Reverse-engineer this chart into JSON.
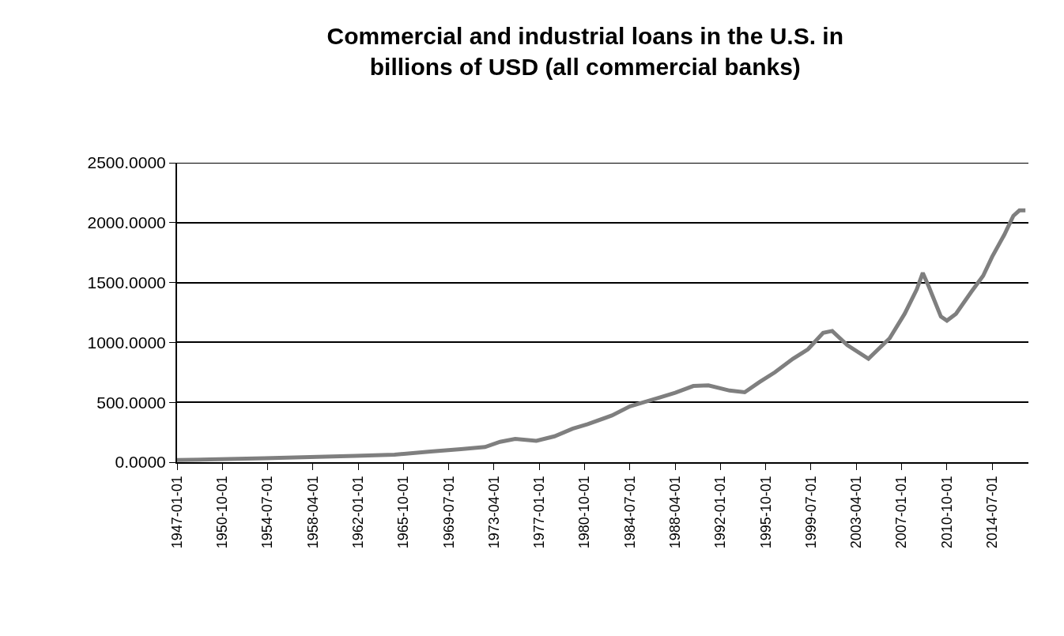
{
  "chart_data": {
    "type": "line",
    "title": "Commercial and industrial loans in the U.S. in billions of USD (all commercial banks)",
    "x": [
      "1947-01",
      "1950-07",
      "1954-04",
      "1958-01",
      "1961-10",
      "1965-01",
      "1968-01",
      "1970-07",
      "1972-07",
      "1973-10",
      "1975-01",
      "1976-10",
      "1978-04",
      "1979-10",
      "1981-01",
      "1983-01",
      "1984-07",
      "1986-10",
      "1988-04",
      "1989-10",
      "1991-01",
      "1992-10",
      "1994-01",
      "1995-04",
      "1996-07",
      "1998-01",
      "1999-04",
      "2000-07",
      "2001-04",
      "2002-07",
      "2004-04",
      "2006-01",
      "2007-04",
      "2008-04",
      "2008-10",
      "2009-04",
      "2010-04",
      "2010-10",
      "2011-07",
      "2012-10",
      "2013-10",
      "2014-07",
      "2015-07",
      "2016-04",
      "2016-10",
      "2017-04"
    ],
    "series": [
      {
        "color": "#7f7f7f",
        "values": [
          18,
          25,
          33,
          43,
          53,
          63,
          89,
          109,
          127,
          170,
          195,
          178,
          216,
          279,
          317,
          390,
          466,
          534,
          580,
          636,
          641,
          598,
          584,
          670,
          750,
          864,
          943,
          1080,
          1096,
          977,
          864,
          1034,
          1239,
          1443,
          1580,
          1466,
          1216,
          1182,
          1239,
          1420,
          1557,
          1716,
          1898,
          2057,
          2102,
          2102
        ]
      }
    ],
    "xlim": [
      "1947-01-01",
      "2017-07-01"
    ],
    "xticks": [
      "1947-01-01",
      "1950-10-01",
      "1954-07-01",
      "1958-04-01",
      "1962-01-01",
      "1965-10-01",
      "1969-07-01",
      "1973-04-01",
      "1977-01-01",
      "1980-10-01",
      "1984-07-01",
      "1988-04-01",
      "1992-01-01",
      "1995-10-01",
      "1999-07-01",
      "2003-04-01",
      "2007-01-01",
      "2010-10-01",
      "2014-07-01"
    ],
    "ylim": [
      0,
      2500
    ],
    "yticks": [
      {
        "value": 0,
        "label": "0.0000"
      },
      {
        "value": 500,
        "label": "500.0000"
      },
      {
        "value": 1000,
        "label": "1000.0000"
      },
      {
        "value": 1500,
        "label": "1500.0000"
      },
      {
        "value": 2000,
        "label": "2000.0000"
      },
      {
        "value": 2500,
        "label": "2500.0000"
      }
    ],
    "grid": "y",
    "marker": "none",
    "line_style": "solid"
  }
}
